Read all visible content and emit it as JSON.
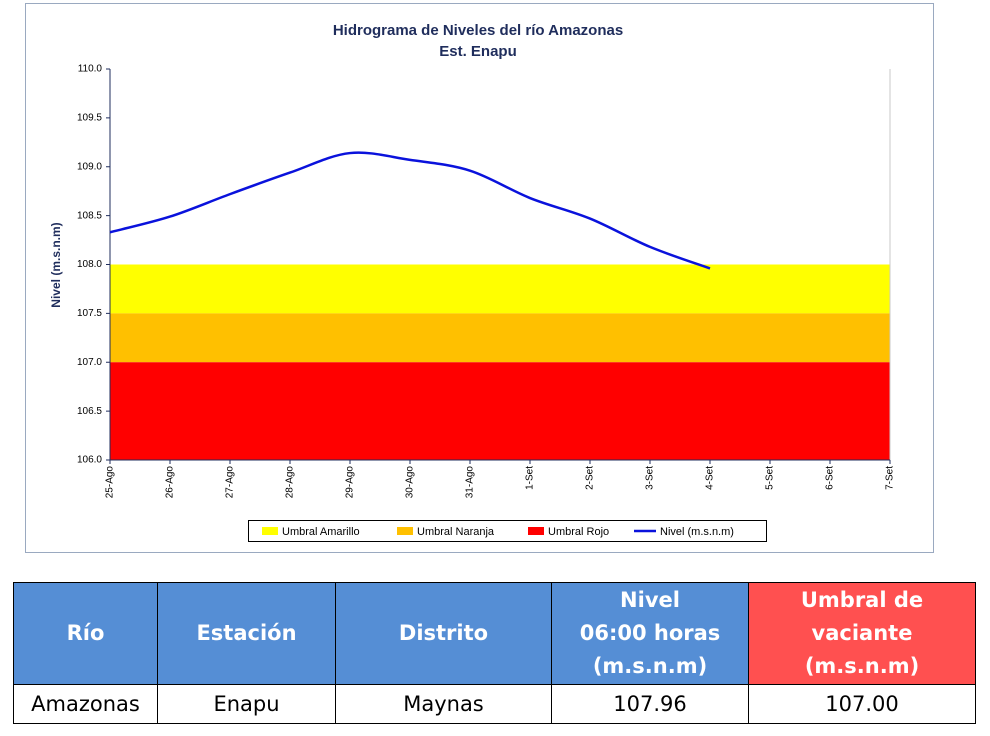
{
  "chart_data": {
    "type": "line",
    "title": "Hidrograma de Niveles del río Amazonas",
    "subtitle": "Est. Enapu",
    "y_label": "Nivel (m.s.n.m)",
    "categories": [
      "25-Ago",
      "26-Ago",
      "27-Ago",
      "28-Ago",
      "29-Ago",
      "30-Ago",
      "31-Ago",
      "1-Set",
      "2-Set",
      "3-Set",
      "4-Set",
      "5-Set",
      "6-Set",
      "7-Set"
    ],
    "series": [
      {
        "name": "Nivel (m.s.n.m)",
        "color": "#0a12dc",
        "values": [
          108.33,
          108.49,
          108.72,
          108.94,
          109.14,
          109.07,
          108.96,
          108.68,
          108.47,
          108.18,
          107.96,
          null,
          null,
          null
        ]
      }
    ],
    "thresholds": [
      {
        "name": "Umbral Amarillo",
        "color": "#ffff00",
        "value": 108.0
      },
      {
        "name": "Umbral Naranja",
        "color": "#ffc000",
        "value": 107.5
      },
      {
        "name": "Umbral Rojo",
        "color": "#ff0000",
        "value": 107.0
      }
    ],
    "ylim": [
      106,
      110
    ],
    "yticks": [
      {
        "value": 106,
        "label": "106.0"
      },
      {
        "value": 106.5,
        "label": "106.5"
      },
      {
        "value": 107,
        "label": "107.0"
      },
      {
        "value": 107.5,
        "label": "107.5"
      },
      {
        "value": 108,
        "label": "108.0"
      },
      {
        "value": 108.5,
        "label": "108.5"
      },
      {
        "value": 109,
        "label": "109.0"
      },
      {
        "value": 109.5,
        "label": "109.5"
      },
      {
        "value": 110,
        "label": "110.0"
      }
    ],
    "legend": "bottom"
  },
  "table": {
    "header": [
      "Río",
      "Estación",
      "Distrito",
      "Nivel\n06:00 horas\n(m.s.n.m)",
      "Umbral de\nvaciante\n(m.s.n.m)"
    ],
    "rows": [
      [
        "Amazonas",
        "Enapu",
        "Maynas",
        "107.96",
        "107.00"
      ]
    ]
  }
}
